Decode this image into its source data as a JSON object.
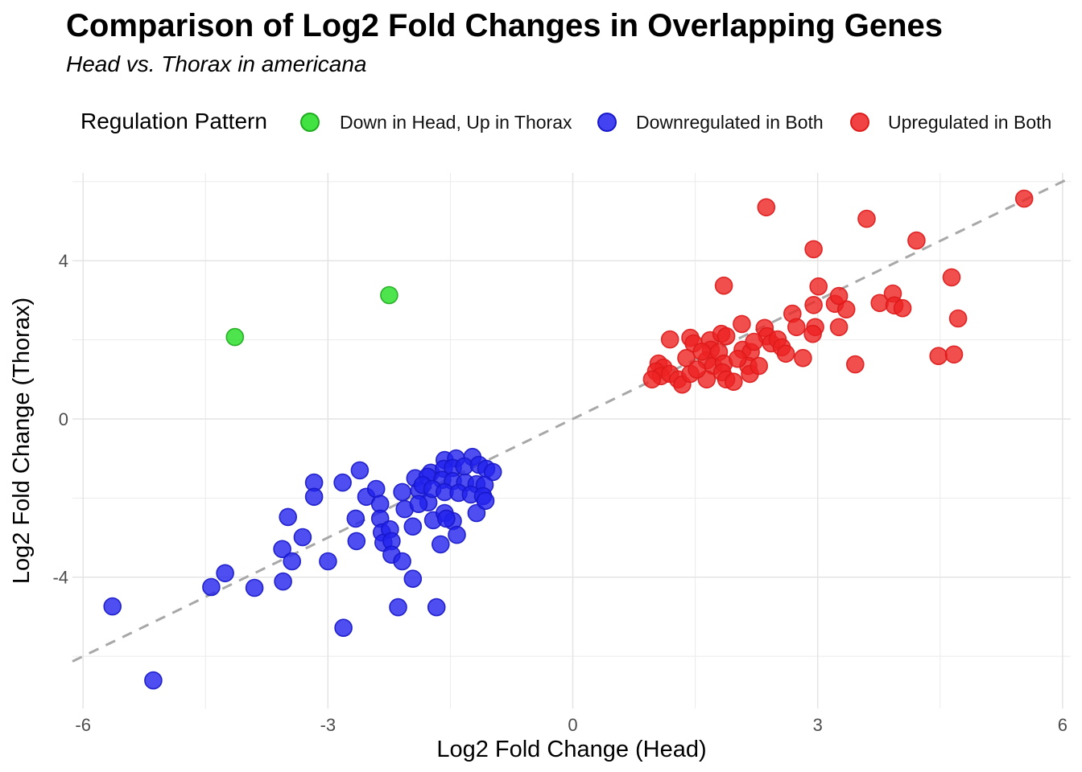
{
  "title": "Comparison of Log2 Fold Changes in Overlapping Genes",
  "subtitle": "Head vs. Thorax in americana",
  "legend": {
    "title": "Regulation Pattern",
    "items": [
      {
        "label": "Down in Head, Up in Thorax",
        "color": "#22DD22"
      },
      {
        "label": "Downregulated in Both",
        "color": "#2222EE"
      },
      {
        "label": "Upregulated in Both",
        "color": "#EE2222"
      }
    ]
  },
  "chart_data": {
    "type": "scatter",
    "title": "Comparison of Log2 Fold Changes in Overlapping Genes",
    "subtitle": "Head vs. Thorax in americana",
    "xlabel": "Log2 Fold Change (Head)",
    "ylabel": "Log2 Fold Change (Thorax)",
    "xlim": [
      -6.13,
      6.1
    ],
    "ylim": [
      -7.32,
      6.22
    ],
    "x_ticks": [
      -6,
      -3,
      0,
      3,
      6
    ],
    "y_ticks": [
      4,
      0,
      -4
    ],
    "x_minor_gridlines": [
      -4.5,
      -1.5,
      1.5,
      4.5
    ],
    "y_minor_gridlines": [
      6,
      2,
      -2,
      -6
    ],
    "grid": true,
    "legend_position": "top",
    "reference_line": {
      "kind": "identity y=x",
      "style": "dashed",
      "color": "#A8A8A8"
    },
    "series": [
      {
        "name": "Down in Head, Up in Thorax",
        "fill": "#22DD22",
        "stroke": "#1CA81C",
        "fill_opacity": 0.8,
        "points": [
          [
            -4.14,
            2.07
          ],
          [
            -2.25,
            3.13
          ]
        ]
      },
      {
        "name": "Downregulated in Both",
        "fill": "#2222EE",
        "stroke": "#1616C8",
        "fill_opacity": 0.8,
        "points": [
          [
            -5.64,
            -4.74
          ],
          [
            -5.14,
            -6.61
          ],
          [
            -4.26,
            -3.9
          ],
          [
            -4.43,
            -4.25
          ],
          [
            -3.9,
            -4.27
          ],
          [
            -3.55,
            -4.11
          ],
          [
            -2.81,
            -5.28
          ],
          [
            -3.49,
            -2.48
          ],
          [
            -3.56,
            -3.29
          ],
          [
            -3.44,
            -3.6
          ],
          [
            -3.17,
            -1.61
          ],
          [
            -3.17,
            -1.97
          ],
          [
            -3.31,
            -2.99
          ],
          [
            -3.0,
            -3.6
          ],
          [
            -2.82,
            -1.61
          ],
          [
            -2.61,
            -1.3
          ],
          [
            -2.66,
            -2.52
          ],
          [
            -2.65,
            -3.09
          ],
          [
            -2.53,
            -1.97
          ],
          [
            -2.41,
            -1.77
          ],
          [
            -2.36,
            -2.15
          ],
          [
            -2.36,
            -2.52
          ],
          [
            -2.34,
            -2.87
          ],
          [
            -2.32,
            -3.13
          ],
          [
            -2.24,
            -2.79
          ],
          [
            -2.22,
            -3.09
          ],
          [
            -2.22,
            -3.43
          ],
          [
            -2.09,
            -1.85
          ],
          [
            -2.06,
            -2.28
          ],
          [
            -2.09,
            -3.6
          ],
          [
            -1.96,
            -2.72
          ],
          [
            -1.93,
            -1.5
          ],
          [
            -1.88,
            -1.81
          ],
          [
            -1.74,
            -1.36
          ],
          [
            -1.77,
            -2.11
          ],
          [
            -1.71,
            -2.56
          ],
          [
            -1.96,
            -4.04
          ],
          [
            -1.67,
            -4.76
          ],
          [
            -2.14,
            -4.76
          ],
          [
            -1.57,
            -2.38
          ],
          [
            -1.47,
            -2.58
          ],
          [
            -1.62,
            -3.17
          ],
          [
            -1.42,
            -2.93
          ],
          [
            -1.18,
            -2.38
          ],
          [
            -1.57,
            -1.04
          ],
          [
            -1.43,
            -1.0
          ],
          [
            -1.23,
            -0.96
          ],
          [
            -1.58,
            -1.26
          ],
          [
            -1.47,
            -1.24
          ],
          [
            -1.33,
            -1.2
          ],
          [
            -1.15,
            -1.16
          ],
          [
            -1.06,
            -1.26
          ],
          [
            -0.98,
            -1.34
          ],
          [
            -1.78,
            -1.46
          ],
          [
            -1.6,
            -1.54
          ],
          [
            -1.47,
            -1.57
          ],
          [
            -1.32,
            -1.61
          ],
          [
            -1.18,
            -1.65
          ],
          [
            -1.08,
            -1.67
          ],
          [
            -1.84,
            -1.67
          ],
          [
            -1.72,
            -1.77
          ],
          [
            -1.57,
            -1.85
          ],
          [
            -1.4,
            -1.87
          ],
          [
            -1.25,
            -1.91
          ],
          [
            -1.1,
            -1.95
          ],
          [
            -1.89,
            -2.15
          ],
          [
            -1.07,
            -2.07
          ],
          [
            -1.55,
            -2.52
          ]
        ]
      },
      {
        "name": "Upregulated in Both",
        "fill": "#EE2222",
        "stroke": "#DD1A1A",
        "fill_opacity": 0.8,
        "points": [
          [
            1.19,
            2.01
          ],
          [
            1.44,
            2.05
          ],
          [
            1.48,
            1.91
          ],
          [
            1.05,
            1.4
          ],
          [
            1.11,
            1.3
          ],
          [
            1.39,
            1.54
          ],
          [
            1.02,
            1.2
          ],
          [
            1.08,
            1.08
          ],
          [
            1.19,
            1.14
          ],
          [
            1.29,
            1.0
          ],
          [
            1.34,
            0.87
          ],
          [
            1.44,
            1.14
          ],
          [
            1.68,
            1.99
          ],
          [
            1.69,
            1.75
          ],
          [
            1.64,
            1.48
          ],
          [
            1.72,
            1.34
          ],
          [
            1.64,
            1.0
          ],
          [
            1.82,
            2.15
          ],
          [
            1.88,
            2.09
          ],
          [
            1.79,
            1.69
          ],
          [
            1.85,
            1.4
          ],
          [
            1.83,
            1.18
          ],
          [
            1.88,
            1.0
          ],
          [
            1.97,
            0.94
          ],
          [
            2.07,
            2.4
          ],
          [
            2.08,
            1.75
          ],
          [
            2.18,
            1.69
          ],
          [
            2.15,
            1.34
          ],
          [
            2.17,
            1.14
          ],
          [
            2.28,
            1.34
          ],
          [
            2.35,
            2.3
          ],
          [
            2.38,
            2.09
          ],
          [
            2.43,
            1.91
          ],
          [
            2.51,
            2.01
          ],
          [
            2.56,
            1.81
          ],
          [
            2.61,
            1.65
          ],
          [
            2.69,
            2.66
          ],
          [
            2.74,
            2.32
          ],
          [
            2.82,
            1.54
          ],
          [
            2.95,
            2.88
          ],
          [
            2.97,
            2.32
          ],
          [
            2.94,
            2.15
          ],
          [
            3.21,
            2.91
          ],
          [
            3.35,
            2.77
          ],
          [
            3.26,
            2.32
          ],
          [
            3.46,
            1.38
          ],
          [
            0.97,
            1.0
          ],
          [
            1.52,
            1.25
          ],
          [
            1.58,
            1.7
          ],
          [
            2.02,
            1.52
          ],
          [
            2.22,
            1.95
          ],
          [
            2.37,
            5.35
          ],
          [
            3.6,
            5.06
          ],
          [
            4.21,
            4.51
          ],
          [
            2.95,
            4.29
          ],
          [
            1.85,
            3.37
          ],
          [
            3.01,
            3.35
          ],
          [
            3.26,
            3.11
          ],
          [
            3.76,
            2.93
          ],
          [
            3.92,
            3.17
          ],
          [
            3.94,
            2.87
          ],
          [
            4.04,
            2.8
          ],
          [
            5.53,
            5.57
          ],
          [
            4.64,
            3.58
          ],
          [
            4.72,
            2.54
          ],
          [
            4.48,
            1.59
          ],
          [
            4.67,
            1.63
          ]
        ]
      }
    ]
  }
}
